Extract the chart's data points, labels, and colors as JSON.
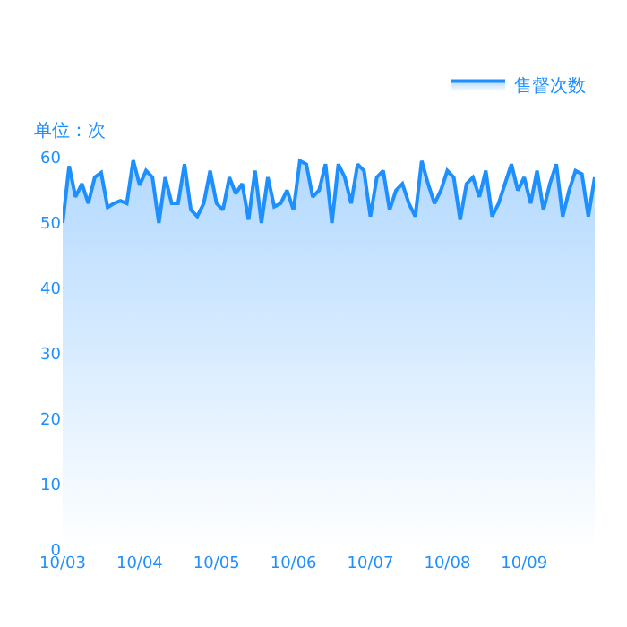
{
  "chart_data": {
    "type": "area",
    "ylabel": "单位：次",
    "legend": "top right",
    "marker": "none",
    "line_style": "solid",
    "ylim": [
      0,
      60
    ],
    "yticks": [
      0,
      10,
      20,
      30,
      40,
      50,
      60
    ],
    "categories": [
      "10/03",
      null,
      null,
      null,
      null,
      null,
      null,
      null,
      null,
      null,
      null,
      null,
      "10/04",
      null,
      null,
      null,
      null,
      null,
      null,
      null,
      null,
      null,
      null,
      null,
      "10/05",
      null,
      null,
      null,
      null,
      null,
      null,
      null,
      null,
      null,
      null,
      null,
      "10/06",
      null,
      null,
      null,
      null,
      null,
      null,
      null,
      null,
      null,
      null,
      null,
      "10/07",
      null,
      null,
      null,
      null,
      null,
      null,
      null,
      null,
      null,
      null,
      null,
      "10/08",
      null,
      null,
      null,
      null,
      null,
      null,
      null,
      null,
      null,
      null,
      null,
      "10/09",
      null,
      null,
      null,
      null,
      null,
      null,
      null,
      null,
      null,
      null,
      null
    ],
    "series": [
      {
        "name": "售督次数",
        "color": "#1e8fff",
        "values": [
          50,
          58.7,
          54,
          56,
          53,
          57,
          57.7,
          52.4,
          53,
          53.4,
          53,
          59.6,
          55.8,
          58,
          57,
          50,
          57,
          53,
          53,
          59,
          52,
          51,
          53,
          58,
          53,
          52,
          57,
          54.5,
          56,
          50.5,
          58,
          50,
          57,
          52.5,
          53,
          55,
          52,
          59.5,
          59,
          54,
          55,
          59,
          50,
          59,
          57,
          53,
          59,
          58,
          51,
          57,
          58,
          52,
          55,
          56,
          53,
          51,
          59.5,
          56,
          53,
          55,
          58,
          57,
          50.5,
          56,
          57,
          54,
          58,
          51,
          53,
          56,
          59,
          55,
          57,
          53,
          58,
          52,
          56,
          59,
          51,
          55,
          58,
          57.5,
          51,
          57
        ]
      }
    ]
  }
}
